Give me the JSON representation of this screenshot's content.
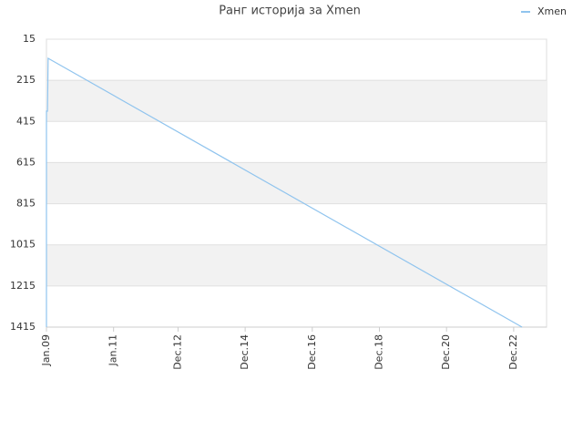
{
  "chart_data": {
    "type": "line",
    "title": "Ранг историја за Xmen",
    "x": [
      2009.0,
      2009.0,
      2009.03,
      2009.05,
      2023.17
    ],
    "series": [
      {
        "name": "Xmen",
        "color": "#90c4ee",
        "values": [
          1415,
          365,
          365,
          108,
          1415
        ]
      }
    ],
    "xlim": [
      2009.0,
      2023.9
    ],
    "xticks": [
      {
        "value": 2009.0,
        "label": "Jan.09"
      },
      {
        "value": 2011.0,
        "label": "Jan.11"
      },
      {
        "value": 2012.92,
        "label": "Dec.12"
      },
      {
        "value": 2014.92,
        "label": "Dec.14"
      },
      {
        "value": 2016.92,
        "label": "Dec.16"
      },
      {
        "value": 2018.92,
        "label": "Dec.18"
      },
      {
        "value": 2020.92,
        "label": "Dec.20"
      },
      {
        "value": 2022.92,
        "label": "Dec.22"
      }
    ],
    "ylim": [
      15,
      1415
    ],
    "y_inverted": true,
    "yticks": [
      15,
      215,
      415,
      615,
      815,
      1015,
      1215,
      1415
    ],
    "grid": true,
    "legend": "top-right"
  }
}
